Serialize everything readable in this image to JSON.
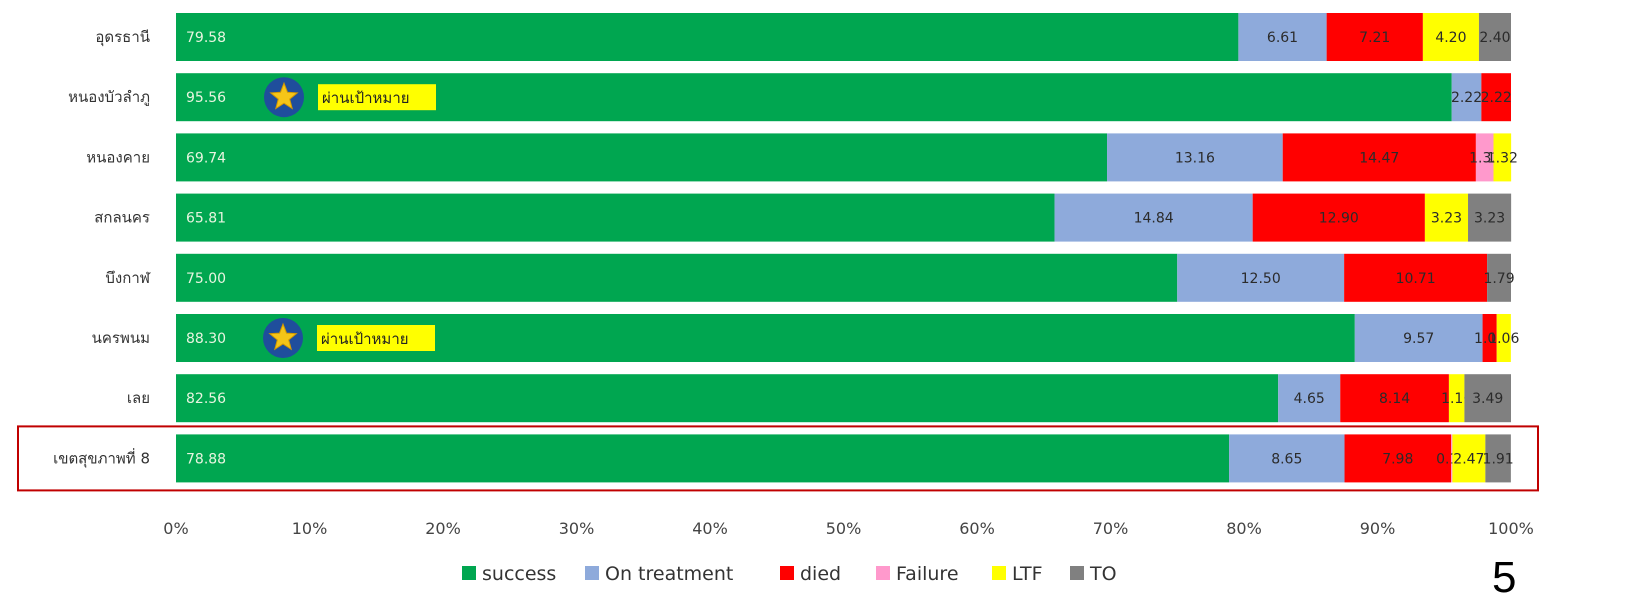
{
  "chart_data": {
    "type": "bar",
    "orientation": "horizontal",
    "stacked": true,
    "percent_scale": true,
    "categories": [
      "อุดรธานี",
      "หนองบัวลำภู",
      "หนองคาย",
      "สกลนคร",
      "บึงกาฬ",
      "นครพนม",
      "เลย",
      "เขตสุขภาพที่ 8"
    ],
    "series": [
      {
        "name": "success",
        "color": "#00a650",
        "values": [
          79.58,
          95.56,
          69.74,
          65.81,
          75.0,
          88.3,
          82.56,
          78.88
        ],
        "labels": [
          "79.58",
          "95.56",
          "69.74",
          "65.81",
          "75.00",
          "88.30",
          "82.56",
          "78.88"
        ]
      },
      {
        "name": "On treatment",
        "color": "#8eaadb",
        "values": [
          6.61,
          2.22,
          13.16,
          14.84,
          12.5,
          9.57,
          4.65,
          8.65
        ],
        "labels": [
          "6.61",
          "2.22",
          "13.16",
          "14.84",
          "12.50",
          "9.57",
          "4.65",
          "8.65"
        ]
      },
      {
        "name": "died",
        "color": "#ff0000",
        "values": [
          7.21,
          2.22,
          14.47,
          12.9,
          10.71,
          1.06,
          8.14,
          7.98
        ],
        "labels": [
          "7.21",
          "2.22",
          "14.47",
          "12.90",
          "10.71",
          "1.06",
          "8.14",
          "7.98"
        ]
      },
      {
        "name": "Failure",
        "color": "#ff99cc",
        "values": [
          0,
          0,
          1.32,
          0,
          0,
          0,
          0,
          0.1
        ],
        "labels": [
          "",
          "",
          "1.32",
          "",
          "",
          "",
          "",
          "0.10"
        ]
      },
      {
        "name": "LTF",
        "color": "#ffff00",
        "values": [
          4.2,
          0,
          1.32,
          3.23,
          0,
          1.06,
          1.16,
          2.47
        ],
        "labels": [
          "4.20",
          "",
          "1.32",
          "3.23",
          "",
          "1.06",
          "1.16",
          "2.47"
        ]
      },
      {
        "name": "TO",
        "color": "#808080",
        "values": [
          2.4,
          0,
          0,
          3.23,
          1.79,
          0,
          3.49,
          1.91
        ],
        "labels": [
          "2.40",
          "",
          "",
          "3.23",
          "1.79",
          "",
          "3.49",
          "1.91"
        ]
      }
    ],
    "x_ticks": [
      "0%",
      "10%",
      "20%",
      "30%",
      "40%",
      "50%",
      "60%",
      "70%",
      "80%",
      "90%",
      "100%"
    ],
    "xlim": [
      0,
      100
    ],
    "legend_position": "bottom",
    "grid": false,
    "target_badges": [
      {
        "category": "หนองบัวลำภู",
        "text": "ผ่านเป้าหมาย",
        "icon": "star-icon"
      },
      {
        "category": "นครพนม",
        "text": "ผ่านเป้าหมาย",
        "icon": "star-icon"
      }
    ],
    "highlighted_category": "เขตสุขภาพที่ 8",
    "highlight_color": "#c00000"
  },
  "page_number": "5"
}
